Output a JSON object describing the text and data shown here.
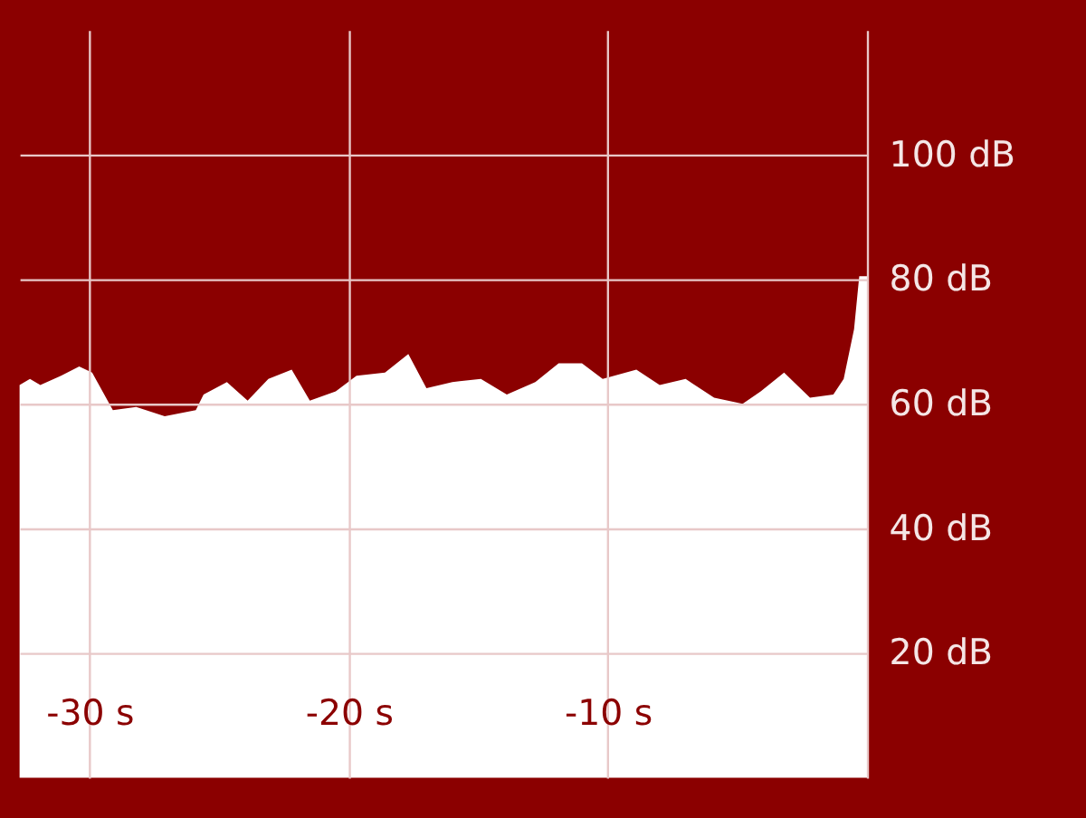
{
  "chart_data": {
    "type": "area",
    "x": [
      -32.7,
      -32.3,
      -31.9,
      -31.1,
      -30.4,
      -29.9,
      -29.1,
      -28.2,
      -27.1,
      -25.9,
      -25.6,
      -24.7,
      -23.9,
      -23.1,
      -22.2,
      -21.5,
      -20.5,
      -19.7,
      -18.6,
      -17.7,
      -17.0,
      -16.0,
      -14.9,
      -13.9,
      -12.8,
      -11.9,
      -11.0,
      -10.2,
      -8.9,
      -8.0,
      -7.0,
      -5.9,
      -4.8,
      -4.1,
      -3.2,
      -2.2,
      -1.3,
      -0.9,
      -0.5,
      -0.3,
      0
    ],
    "series": [
      {
        "color": "#ffffff",
        "values": [
          63,
          64,
          63,
          64.5,
          66,
          65,
          59,
          59.5,
          58,
          59,
          61.5,
          63.5,
          60.5,
          64,
          65.5,
          60.5,
          62,
          64.5,
          65,
          68,
          62.5,
          63.5,
          64,
          61.5,
          63.5,
          66.5,
          66.5,
          64,
          65.5,
          63,
          64,
          61,
          60,
          62,
          65,
          61,
          61.5,
          64,
          72,
          80.5,
          80.5
        ]
      }
    ],
    "xlim": [
      -32.7,
      0
    ],
    "xticks": [
      {
        "value": -30,
        "label": "-30 s"
      },
      {
        "value": -20,
        "label": "-20 s"
      },
      {
        "value": -10,
        "label": "-10 s"
      },
      {
        "value": 0,
        "label": null
      }
    ],
    "ylim": [
      0,
      120
    ],
    "yticks": [
      {
        "value": 20,
        "label": "20 dB"
      },
      {
        "value": 40,
        "label": "40 dB"
      },
      {
        "value": 60,
        "label": "60 dB"
      },
      {
        "value": 80,
        "label": "80 dB"
      },
      {
        "value": 100,
        "label": "100 dB"
      }
    ],
    "grid": true
  }
}
